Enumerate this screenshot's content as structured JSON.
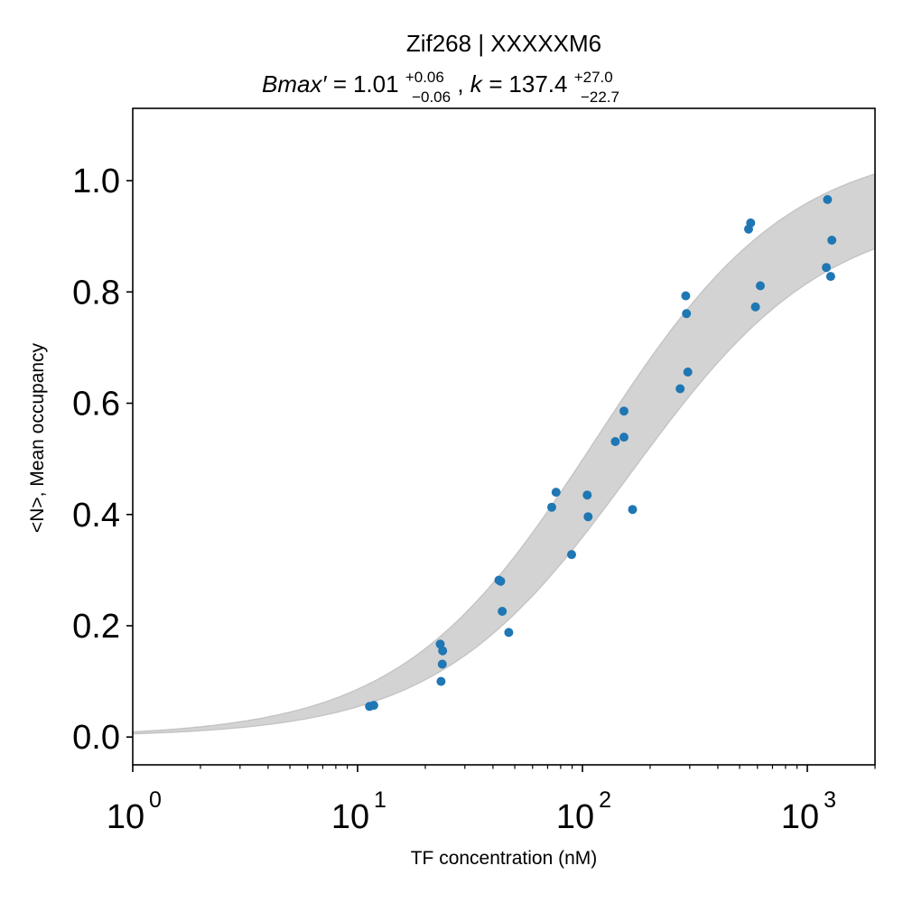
{
  "chart_data": {
    "type": "scatter",
    "title": "Zif268 | XXXXXM6",
    "subtitle": {
      "bmax_label": "Bmax′ = ",
      "bmax_value": "1.01",
      "bmax_plus": "+0.06",
      "bmax_minus": "−0.06",
      "separator": ", ",
      "k_label": "k = ",
      "k_value": "137.4",
      "k_plus": "+27.0",
      "k_minus": "−22.7"
    },
    "xlabel": "TF concentration (nM)",
    "ylabel": "<N>, Mean occupancy",
    "xscale": "log",
    "xlim": [
      1,
      2000
    ],
    "ylim": [
      -0.05,
      1.13
    ],
    "yticks": [
      "0.0",
      "0.2",
      "0.4",
      "0.6",
      "0.8",
      "1.0"
    ],
    "xticks": [
      {
        "base": "10",
        "exp": "0"
      },
      {
        "base": "10",
        "exp": "1"
      },
      {
        "base": "10",
        "exp": "2"
      },
      {
        "base": "10",
        "exp": "3"
      }
    ],
    "grid": false,
    "point_color": "#1f77b4",
    "band_color": "#d3d3d3",
    "fit_band": {
      "bmax_lower": 0.95,
      "k_lower": 114.7,
      "bmax_upper": 1.07,
      "k_upper": 164.4
    },
    "points": [
      {
        "x": 11.3,
        "y": 0.055
      },
      {
        "x": 11.8,
        "y": 0.057
      },
      {
        "x": 23.3,
        "y": 0.167
      },
      {
        "x": 23.9,
        "y": 0.155
      },
      {
        "x": 23.8,
        "y": 0.131
      },
      {
        "x": 23.5,
        "y": 0.1
      },
      {
        "x": 42.5,
        "y": 0.282
      },
      {
        "x": 43.3,
        "y": 0.28
      },
      {
        "x": 44.0,
        "y": 0.226
      },
      {
        "x": 47.0,
        "y": 0.188
      },
      {
        "x": 73.0,
        "y": 0.413
      },
      {
        "x": 76.3,
        "y": 0.44
      },
      {
        "x": 89.5,
        "y": 0.328
      },
      {
        "x": 105.0,
        "y": 0.435
      },
      {
        "x": 106.0,
        "y": 0.396
      },
      {
        "x": 140.0,
        "y": 0.531
      },
      {
        "x": 153.0,
        "y": 0.586
      },
      {
        "x": 153.0,
        "y": 0.539
      },
      {
        "x": 167.0,
        "y": 0.409
      },
      {
        "x": 272.0,
        "y": 0.626
      },
      {
        "x": 288.0,
        "y": 0.793
      },
      {
        "x": 290.0,
        "y": 0.761
      },
      {
        "x": 294.0,
        "y": 0.656
      },
      {
        "x": 548.0,
        "y": 0.913
      },
      {
        "x": 560.0,
        "y": 0.924
      },
      {
        "x": 588.0,
        "y": 0.773
      },
      {
        "x": 618.0,
        "y": 0.811
      },
      {
        "x": 1230.0,
        "y": 0.966
      },
      {
        "x": 1215.0,
        "y": 0.844
      },
      {
        "x": 1285.0,
        "y": 0.893
      },
      {
        "x": 1270.0,
        "y": 0.828
      }
    ]
  }
}
